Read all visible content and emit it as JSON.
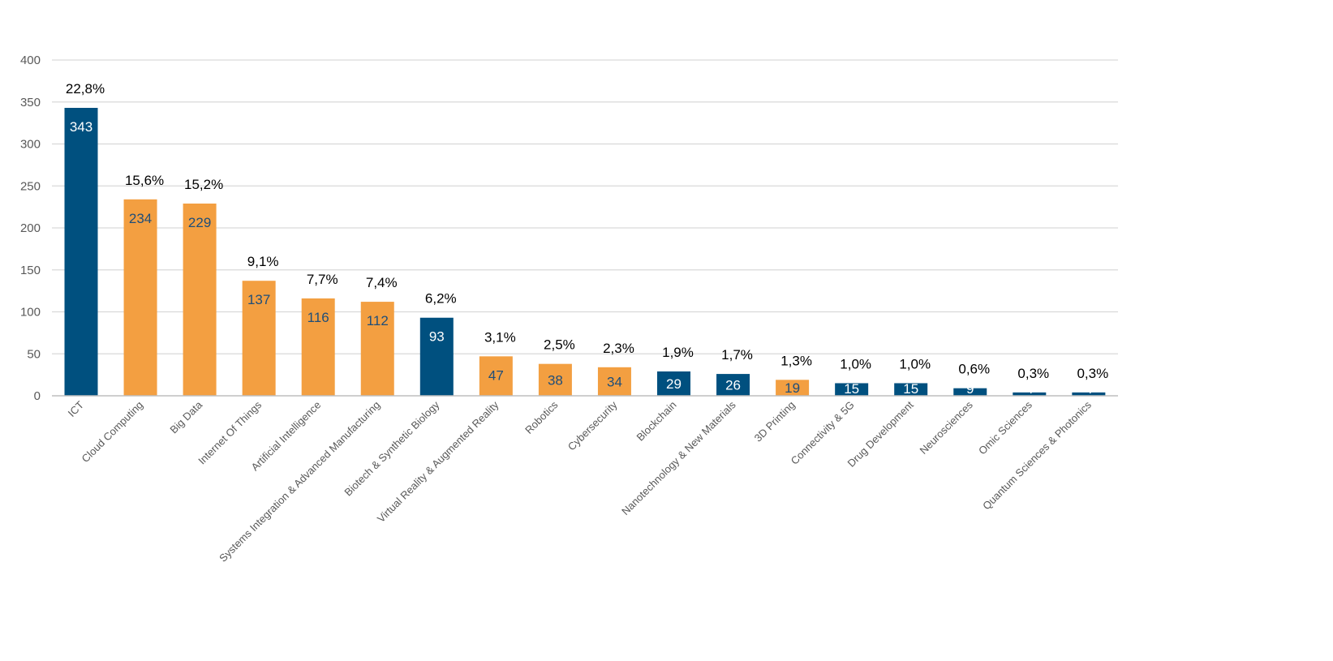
{
  "chart_data": {
    "type": "bar",
    "title": "",
    "xlabel": "",
    "ylabel": "",
    "ylim": [
      0,
      400
    ],
    "yticks": [
      0,
      50,
      100,
      150,
      200,
      250,
      300,
      350,
      400
    ],
    "grid": true,
    "categories": [
      "ICT",
      "Cloud Computing",
      "Big Data",
      "Internet Of Things",
      "Artificial Intelligence",
      "Systems Integration & Advanced Manufacturing",
      "Biotech & Synthetic Biology",
      "Virtual Reality & Augmented Reality",
      "Robotics",
      "Cybersecurity",
      "Blockchain",
      "Nanotechnology & New Materials",
      "3D Printing",
      "Connectivity & 5G",
      "Drug Development",
      "Neurosciences",
      "Omic Sciences",
      "Quantum Sciences & Photonics"
    ],
    "values": [
      343,
      234,
      229,
      137,
      116,
      112,
      93,
      47,
      38,
      34,
      29,
      26,
      19,
      15,
      15,
      9,
      4,
      4
    ],
    "value_labels": [
      "343",
      "234",
      "229",
      "137",
      "116",
      "112",
      "93",
      "47",
      "38",
      "34",
      "29",
      "26",
      "19",
      "15",
      "15",
      "9",
      "4",
      "4"
    ],
    "percent_labels": [
      "22,8%",
      "15,6%",
      "15,2%",
      "9,1%",
      "7,7%",
      "7,4%",
      "6,2%",
      "3,1%",
      "2,5%",
      "2,3%",
      "1,9%",
      "1,7%",
      "1,3%",
      "1,0%",
      "1,0%",
      "0,6%",
      "0,3%",
      "0,3%"
    ],
    "bar_colors": [
      "#00507f",
      "#f39f41",
      "#f39f41",
      "#f39f41",
      "#f39f41",
      "#f39f41",
      "#00507f",
      "#f39f41",
      "#f39f41",
      "#f39f41",
      "#00507f",
      "#00507f",
      "#f39f41",
      "#00507f",
      "#00507f",
      "#00507f",
      "#00507f",
      "#00507f"
    ],
    "colors": {
      "dark_blue": "#00507f",
      "orange": "#f39f41",
      "label_on_dark": "#ffffff",
      "label_on_orange": "#1f4e79"
    }
  }
}
